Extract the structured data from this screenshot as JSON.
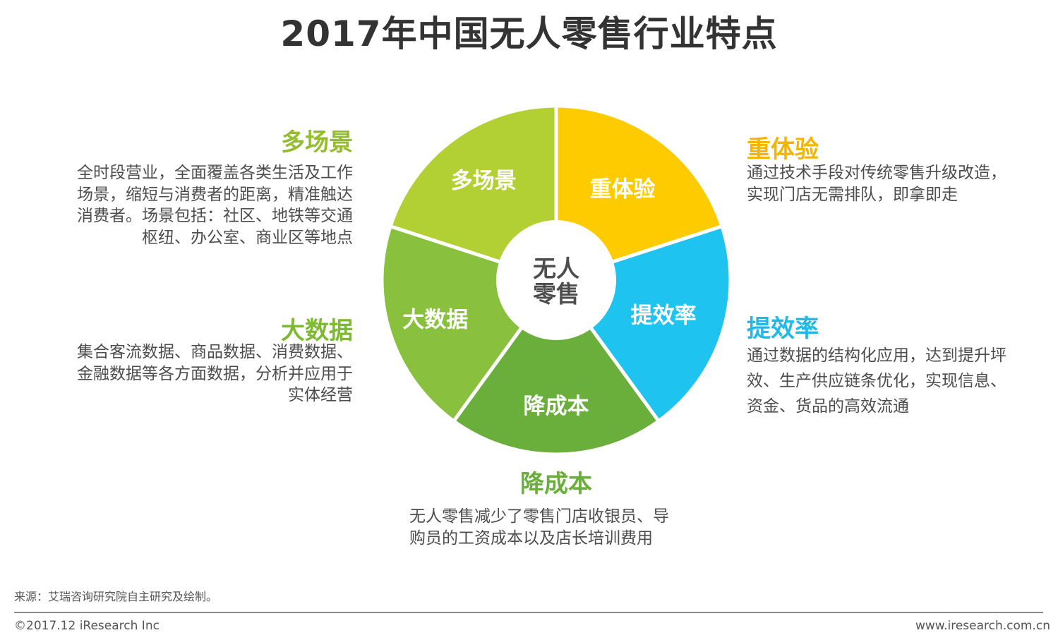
{
  "title": "2017年中国无人零售行业特点",
  "center_label": [
    "无人",
    "零售"
  ],
  "segments": [
    {
      "id": "duo",
      "label": "多场景",
      "color": "#b2cf33"
    },
    {
      "id": "zhong",
      "label": "重体验",
      "color": "#fdcb00"
    },
    {
      "id": "ti",
      "label": "提效率",
      "color": "#1fc3ef"
    },
    {
      "id": "jiang",
      "label": "降成本",
      "color": "#6aae3c"
    },
    {
      "id": "da",
      "label": "大数据",
      "color": "#89c13f"
    }
  ],
  "descriptions": {
    "duo": {
      "heading": "多场景",
      "color": "#94bd2b",
      "lines": [
        "全时段营业，全面覆盖各类生活及工作",
        "场景，缩短与消费者的距离，精准触达",
        "消费者。场景包括：社区、地铁等交通",
        "枢纽、办公室、商业区等地点"
      ]
    },
    "zhong": {
      "heading": "重体验",
      "color": "#f4b400",
      "lines": [
        "通过技术手段对传统零售升级改造，",
        "实现门店无需排队，即拿即走"
      ]
    },
    "ti": {
      "heading": "提效率",
      "color": "#1fb9ea",
      "lines": [
        "通过数据的结构化应用，达到提升坪",
        "效、生产供应链条优化，实现信息、",
        "资金、货品的高效流通"
      ]
    },
    "jiang": {
      "heading": "降成本",
      "color": "#6aae3c",
      "lines": [
        "无人零售减少了零售门店收银员、导",
        "购员的工资成本以及店长培训费用"
      ]
    },
    "da": {
      "heading": "大数据",
      "color": "#7dba2f",
      "lines": [
        "集合客流数据、商品数据、消费数据、",
        "金融数据等各方面数据，分析并应用于",
        "实体经营"
      ]
    }
  },
  "footer": {
    "source": "来源：艾瑞咨询研究院自主研究及绘制。",
    "copyright": "©2017.12 iResearch Inc",
    "website": "www.iresearch.com.cn"
  }
}
